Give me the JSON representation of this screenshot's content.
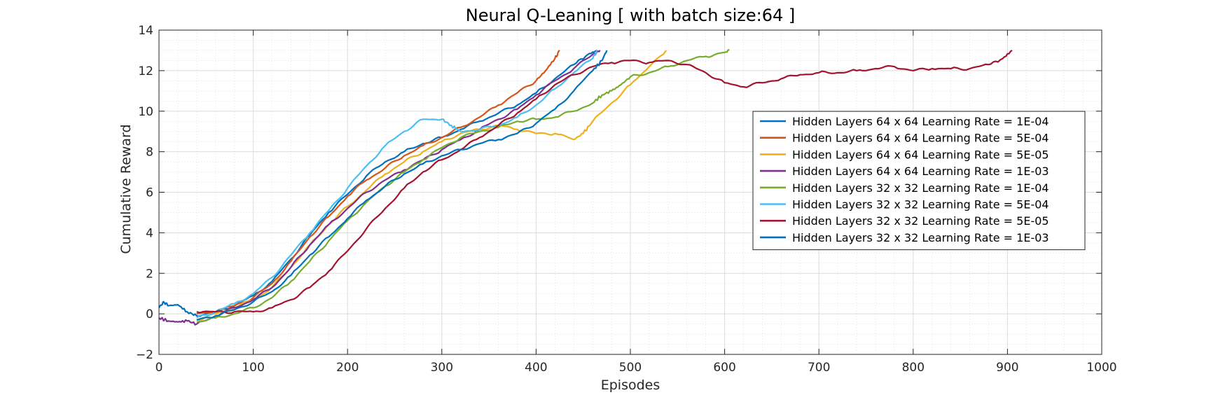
{
  "chart_data": {
    "type": "line",
    "title": "Neural Q-Leaning [ with batch size:64 ]",
    "xlabel": "Episodes",
    "ylabel": "Cumulative Reward",
    "xlim": [
      0,
      1000
    ],
    "ylim": [
      -2,
      14
    ],
    "xticks": [
      0,
      100,
      200,
      300,
      400,
      500,
      600,
      700,
      800,
      900,
      1000
    ],
    "yticks": [
      -2,
      0,
      2,
      4,
      6,
      8,
      10,
      12,
      14
    ],
    "grid": true,
    "minor_grid": true,
    "legend_position": "center-right",
    "series": [
      {
        "name": "Hidden Layers 64 x 64 Learning Rate = 1E-04",
        "color": "#0072BD",
        "points": [
          [
            0,
            0.3
          ],
          [
            5,
            0.6
          ],
          [
            10,
            0.4
          ],
          [
            20,
            0.45
          ],
          [
            30,
            0.1
          ],
          [
            40,
            -0.1
          ],
          [
            60,
            0.1
          ],
          [
            80,
            0.4
          ],
          [
            100,
            0.9
          ],
          [
            120,
            1.6
          ],
          [
            140,
            2.7
          ],
          [
            160,
            3.9
          ],
          [
            180,
            5.0
          ],
          [
            200,
            5.9
          ],
          [
            220,
            6.8
          ],
          [
            240,
            7.5
          ],
          [
            260,
            8.0
          ],
          [
            280,
            8.4
          ],
          [
            300,
            8.7
          ],
          [
            320,
            9.1
          ],
          [
            340,
            9.5
          ],
          [
            360,
            9.9
          ],
          [
            380,
            10.3
          ],
          [
            400,
            10.9
          ],
          [
            420,
            11.6
          ],
          [
            440,
            12.3
          ],
          [
            455,
            12.8
          ],
          [
            465,
            13.0
          ]
        ]
      },
      {
        "name": "Hidden Layers 64 x 64 Learning Rate = 5E-04",
        "color": "#D95319",
        "points": [
          [
            40,
            0.0
          ],
          [
            60,
            0.1
          ],
          [
            80,
            0.4
          ],
          [
            100,
            0.8
          ],
          [
            120,
            1.5
          ],
          [
            140,
            2.6
          ],
          [
            160,
            3.8
          ],
          [
            180,
            4.8
          ],
          [
            200,
            5.8
          ],
          [
            220,
            6.6
          ],
          [
            240,
            7.2
          ],
          [
            260,
            7.8
          ],
          [
            280,
            8.3
          ],
          [
            300,
            8.7
          ],
          [
            320,
            9.2
          ],
          [
            340,
            9.7
          ],
          [
            360,
            10.3
          ],
          [
            380,
            10.9
          ],
          [
            400,
            11.5
          ],
          [
            410,
            12.0
          ],
          [
            420,
            12.6
          ],
          [
            425,
            13.0
          ]
        ]
      },
      {
        "name": "Hidden Layers 64 x 64 Learning Rate = 5E-05",
        "color": "#EDB120",
        "points": [
          [
            40,
            -0.3
          ],
          [
            60,
            0.0
          ],
          [
            80,
            0.3
          ],
          [
            100,
            0.7
          ],
          [
            120,
            1.3
          ],
          [
            140,
            2.3
          ],
          [
            160,
            3.4
          ],
          [
            180,
            4.4
          ],
          [
            200,
            5.3
          ],
          [
            220,
            6.1
          ],
          [
            240,
            6.9
          ],
          [
            260,
            7.5
          ],
          [
            280,
            8.0
          ],
          [
            300,
            8.5
          ],
          [
            320,
            8.9
          ],
          [
            340,
            9.1
          ],
          [
            360,
            9.3
          ],
          [
            380,
            9.1
          ],
          [
            400,
            8.9
          ],
          [
            420,
            8.9
          ],
          [
            440,
            8.6
          ],
          [
            450,
            8.9
          ],
          [
            460,
            9.5
          ],
          [
            480,
            10.4
          ],
          [
            500,
            11.3
          ],
          [
            520,
            12.2
          ],
          [
            538,
            13.0
          ]
        ]
      },
      {
        "name": "Hidden Layers 64 x 64 Learning Rate = 1E-03",
        "color": "#7E2F8E",
        "points": [
          [
            0,
            -0.2
          ],
          [
            10,
            -0.35
          ],
          [
            20,
            -0.4
          ],
          [
            30,
            -0.35
          ],
          [
            40,
            -0.5
          ],
          [
            60,
            -0.1
          ],
          [
            80,
            0.3
          ],
          [
            100,
            0.7
          ],
          [
            120,
            1.3
          ],
          [
            140,
            2.3
          ],
          [
            160,
            3.4
          ],
          [
            180,
            4.4
          ],
          [
            200,
            5.2
          ],
          [
            220,
            6.0
          ],
          [
            240,
            6.6
          ],
          [
            260,
            7.1
          ],
          [
            280,
            7.6
          ],
          [
            300,
            8.1
          ],
          [
            320,
            8.6
          ],
          [
            340,
            9.1
          ],
          [
            360,
            9.6
          ],
          [
            380,
            10.1
          ],
          [
            400,
            10.8
          ],
          [
            420,
            11.5
          ],
          [
            440,
            12.1
          ],
          [
            460,
            12.8
          ],
          [
            468,
            13.0
          ]
        ]
      },
      {
        "name": "Hidden Layers 32 x 32 Learning Rate = 1E-04",
        "color": "#77AC30",
        "points": [
          [
            40,
            -0.4
          ],
          [
            60,
            -0.2
          ],
          [
            80,
            0.0
          ],
          [
            100,
            0.3
          ],
          [
            120,
            0.8
          ],
          [
            140,
            1.6
          ],
          [
            160,
            2.6
          ],
          [
            180,
            3.6
          ],
          [
            200,
            4.6
          ],
          [
            220,
            5.5
          ],
          [
            240,
            6.3
          ],
          [
            260,
            7.0
          ],
          [
            280,
            7.6
          ],
          [
            300,
            8.2
          ],
          [
            320,
            8.7
          ],
          [
            340,
            9.0
          ],
          [
            360,
            9.2
          ],
          [
            380,
            9.5
          ],
          [
            400,
            9.6
          ],
          [
            420,
            9.7
          ],
          [
            440,
            10.0
          ],
          [
            460,
            10.4
          ],
          [
            470,
            10.8
          ],
          [
            480,
            11.0
          ],
          [
            490,
            11.3
          ],
          [
            500,
            11.7
          ],
          [
            520,
            11.9
          ],
          [
            540,
            12.2
          ],
          [
            560,
            12.5
          ],
          [
            580,
            12.7
          ],
          [
            600,
            12.9
          ],
          [
            605,
            13.0
          ]
        ]
      },
      {
        "name": "Hidden Layers 32 x 32 Learning Rate = 5E-04",
        "color": "#4DBEEE",
        "points": [
          [
            40,
            -0.2
          ],
          [
            60,
            0.1
          ],
          [
            80,
            0.5
          ],
          [
            100,
            1.0
          ],
          [
            120,
            1.8
          ],
          [
            140,
            2.9
          ],
          [
            160,
            4.0
          ],
          [
            180,
            5.1
          ],
          [
            200,
            6.2
          ],
          [
            220,
            7.3
          ],
          [
            240,
            8.3
          ],
          [
            260,
            9.0
          ],
          [
            280,
            9.6
          ],
          [
            300,
            9.6
          ],
          [
            310,
            9.3
          ],
          [
            320,
            9.0
          ],
          [
            340,
            9.1
          ],
          [
            360,
            9.3
          ],
          [
            380,
            9.7
          ],
          [
            400,
            10.3
          ],
          [
            420,
            11.1
          ],
          [
            440,
            11.9
          ],
          [
            460,
            12.6
          ],
          [
            465,
            13.0
          ]
        ]
      },
      {
        "name": "Hidden Layers 32 x 32 Learning Rate = 5E-05",
        "color": "#A2142F",
        "points": [
          [
            40,
            0.1
          ],
          [
            60,
            0.1
          ],
          [
            80,
            0.1
          ],
          [
            100,
            0.1
          ],
          [
            120,
            0.3
          ],
          [
            140,
            0.7
          ],
          [
            160,
            1.3
          ],
          [
            180,
            2.1
          ],
          [
            200,
            3.1
          ],
          [
            220,
            4.2
          ],
          [
            240,
            5.2
          ],
          [
            260,
            6.2
          ],
          [
            280,
            7.0
          ],
          [
            300,
            7.6
          ],
          [
            320,
            8.1
          ],
          [
            340,
            8.7
          ],
          [
            360,
            9.3
          ],
          [
            380,
            9.9
          ],
          [
            400,
            10.6
          ],
          [
            420,
            11.3
          ],
          [
            440,
            11.8
          ],
          [
            460,
            12.2
          ],
          [
            480,
            12.4
          ],
          [
            500,
            12.5
          ],
          [
            520,
            12.4
          ],
          [
            540,
            12.5
          ],
          [
            560,
            12.3
          ],
          [
            580,
            11.9
          ],
          [
            600,
            11.4
          ],
          [
            620,
            11.2
          ],
          [
            640,
            11.4
          ],
          [
            660,
            11.6
          ],
          [
            680,
            11.8
          ],
          [
            700,
            11.9
          ],
          [
            720,
            11.9
          ],
          [
            740,
            12.0
          ],
          [
            760,
            12.1
          ],
          [
            780,
            12.2
          ],
          [
            800,
            12.0
          ],
          [
            820,
            12.1
          ],
          [
            840,
            12.1
          ],
          [
            860,
            12.1
          ],
          [
            880,
            12.3
          ],
          [
            895,
            12.6
          ],
          [
            905,
            13.0
          ]
        ]
      },
      {
        "name": "Hidden Layers 32 x 32 Learning Rate = 1E-03",
        "color": "#0072BD",
        "points": [
          [
            40,
            -0.3
          ],
          [
            60,
            -0.1
          ],
          [
            80,
            0.2
          ],
          [
            100,
            0.6
          ],
          [
            120,
            1.1
          ],
          [
            140,
            1.9
          ],
          [
            160,
            2.9
          ],
          [
            180,
            3.8
          ],
          [
            200,
            4.7
          ],
          [
            220,
            5.6
          ],
          [
            240,
            6.3
          ],
          [
            260,
            6.9
          ],
          [
            280,
            7.4
          ],
          [
            300,
            7.8
          ],
          [
            320,
            8.1
          ],
          [
            340,
            8.4
          ],
          [
            360,
            8.6
          ],
          [
            380,
            8.9
          ],
          [
            400,
            9.4
          ],
          [
            420,
            10.1
          ],
          [
            440,
            11.0
          ],
          [
            460,
            12.0
          ],
          [
            470,
            12.5
          ],
          [
            475,
            13.0
          ]
        ]
      }
    ]
  }
}
